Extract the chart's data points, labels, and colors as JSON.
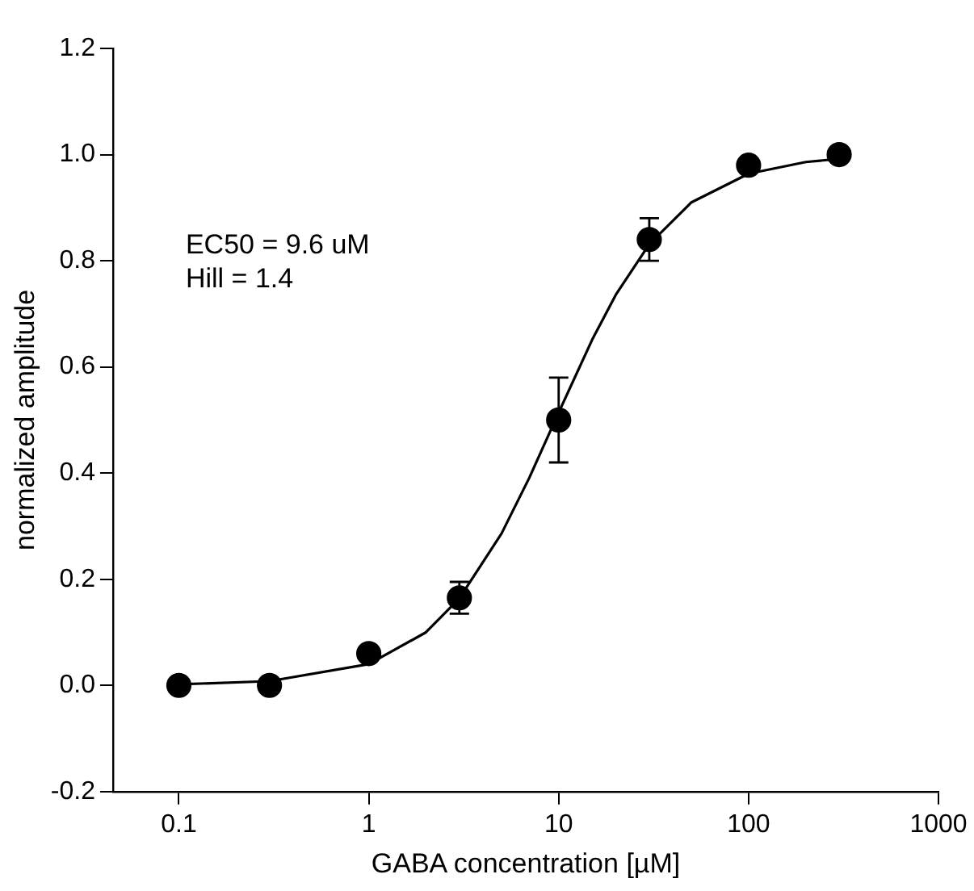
{
  "chart_data": {
    "type": "scatter",
    "xlabel": "GABA concentration [µM]",
    "ylabel": "normalized amplitude",
    "annotations": [
      "EC50 = 9.6 uM",
      "Hill = 1.4"
    ],
    "log": "x",
    "grid": false,
    "legend": false,
    "xlim": [
      0.045,
      1000
    ],
    "xticks": [
      0.1,
      1,
      10,
      100,
      1000
    ],
    "ylim": [
      -0.2,
      1.2
    ],
    "yticks": [
      -0.2,
      {
        "value": 0,
        "label": "0.0"
      },
      0.2,
      0.4,
      0.6,
      0.8,
      {
        "value": 1,
        "label": "1.0"
      },
      1.2
    ],
    "series": [
      {
        "type": "line",
        "color": "#000000",
        "marker": "none",
        "line_style": "solid",
        "x": [
          0.1,
          0.3,
          1,
          2,
          3,
          5,
          7,
          10,
          15,
          20,
          30,
          50,
          100,
          200,
          300
        ],
        "values": [
          0.002,
          0.008,
          0.04,
          0.1,
          0.164,
          0.286,
          0.391,
          0.514,
          0.651,
          0.736,
          0.831,
          0.91,
          0.964,
          0.986,
          0.992
        ]
      },
      {
        "color": "#000000",
        "marker": "circle",
        "x": [
          0.1,
          0.3,
          1,
          3,
          10,
          30,
          100,
          300
        ],
        "values": [
          0,
          0,
          0.06,
          0.165,
          0.5,
          0.84,
          0.98,
          1.0
        ],
        "errors": [
          null,
          null,
          null,
          0.03,
          0.08,
          0.04,
          null,
          null
        ]
      }
    ]
  }
}
